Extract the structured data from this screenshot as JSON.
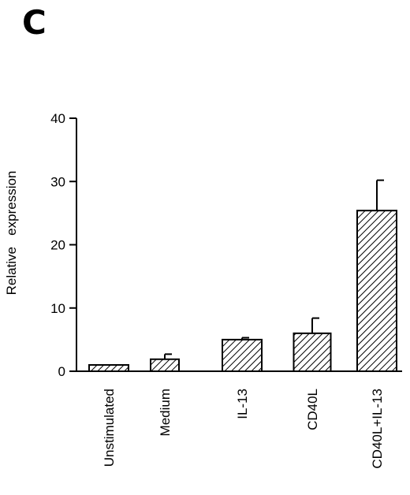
{
  "panel_label": "C",
  "chart_data": {
    "type": "bar",
    "categories": [
      "Unstimulated",
      "Medium",
      "IL-13",
      "CD40L",
      "CD40L+IL-13"
    ],
    "values": [
      1.0,
      1.9,
      5.0,
      6.0,
      25.4
    ],
    "errors": [
      0.0,
      0.8,
      0.3,
      2.4,
      4.8
    ],
    "ylabel": "Relative   expression",
    "xlabel": "",
    "ylim": [
      0,
      40
    ],
    "yticks": [
      0,
      10,
      20,
      30,
      40
    ],
    "bar_fill": "diagonal-hatch",
    "colors": {
      "axis": "#000000",
      "bar_stroke": "#000000",
      "hatch": "#000000",
      "background": "#ffffff"
    }
  }
}
